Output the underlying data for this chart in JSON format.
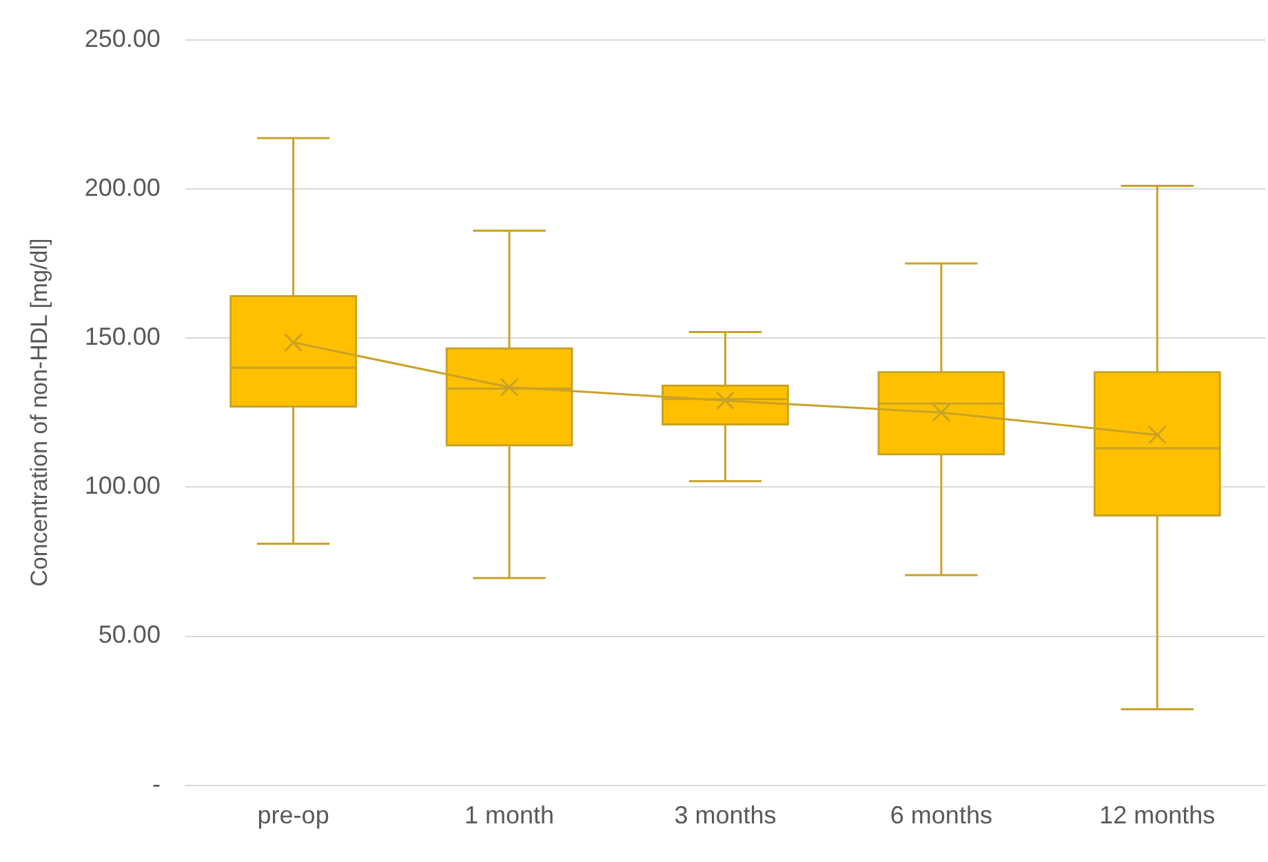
{
  "chart_data": {
    "type": "box",
    "ylabel": "Concentration of non-HDL [mg/dl]",
    "categories": [
      "pre-op",
      "1 month",
      "3 months",
      "6 months",
      "12 months"
    ],
    "boxes": [
      {
        "low": 81,
        "q1": 127,
        "median": 140,
        "q3": 164,
        "high": 217,
        "mean": 148.5
      },
      {
        "low": 69.5,
        "q1": 114,
        "median": 133,
        "q3": 146.5,
        "high": 186,
        "mean": 133.5
      },
      {
        "low": 102,
        "q1": 121,
        "median": 129.5,
        "q3": 134,
        "high": 152,
        "mean": 129
      },
      {
        "low": 70.5,
        "q1": 111,
        "median": 128,
        "q3": 138.5,
        "high": 175,
        "mean": 125
      },
      {
        "low": 25.5,
        "q1": 90.5,
        "median": 113,
        "q3": 138.5,
        "high": 201,
        "mean": 117.5
      }
    ],
    "color": "#ffc000",
    "series": [
      {
        "type": "line",
        "color": "#c9a227",
        "values": [
          148.5,
          133.5,
          129,
          125,
          117.5
        ],
        "marker": "none"
      }
    ],
    "ylim": [
      0,
      250
    ],
    "yticks": [
      {
        "value": 0,
        "label": "-"
      },
      {
        "value": 50,
        "label": "50.00"
      },
      {
        "value": 100,
        "label": "100.00"
      },
      {
        "value": 150,
        "label": "150.00"
      },
      {
        "value": 200,
        "label": "200.00"
      },
      {
        "value": 250,
        "label": "250.00"
      }
    ],
    "grid": "y",
    "legend": false
  }
}
